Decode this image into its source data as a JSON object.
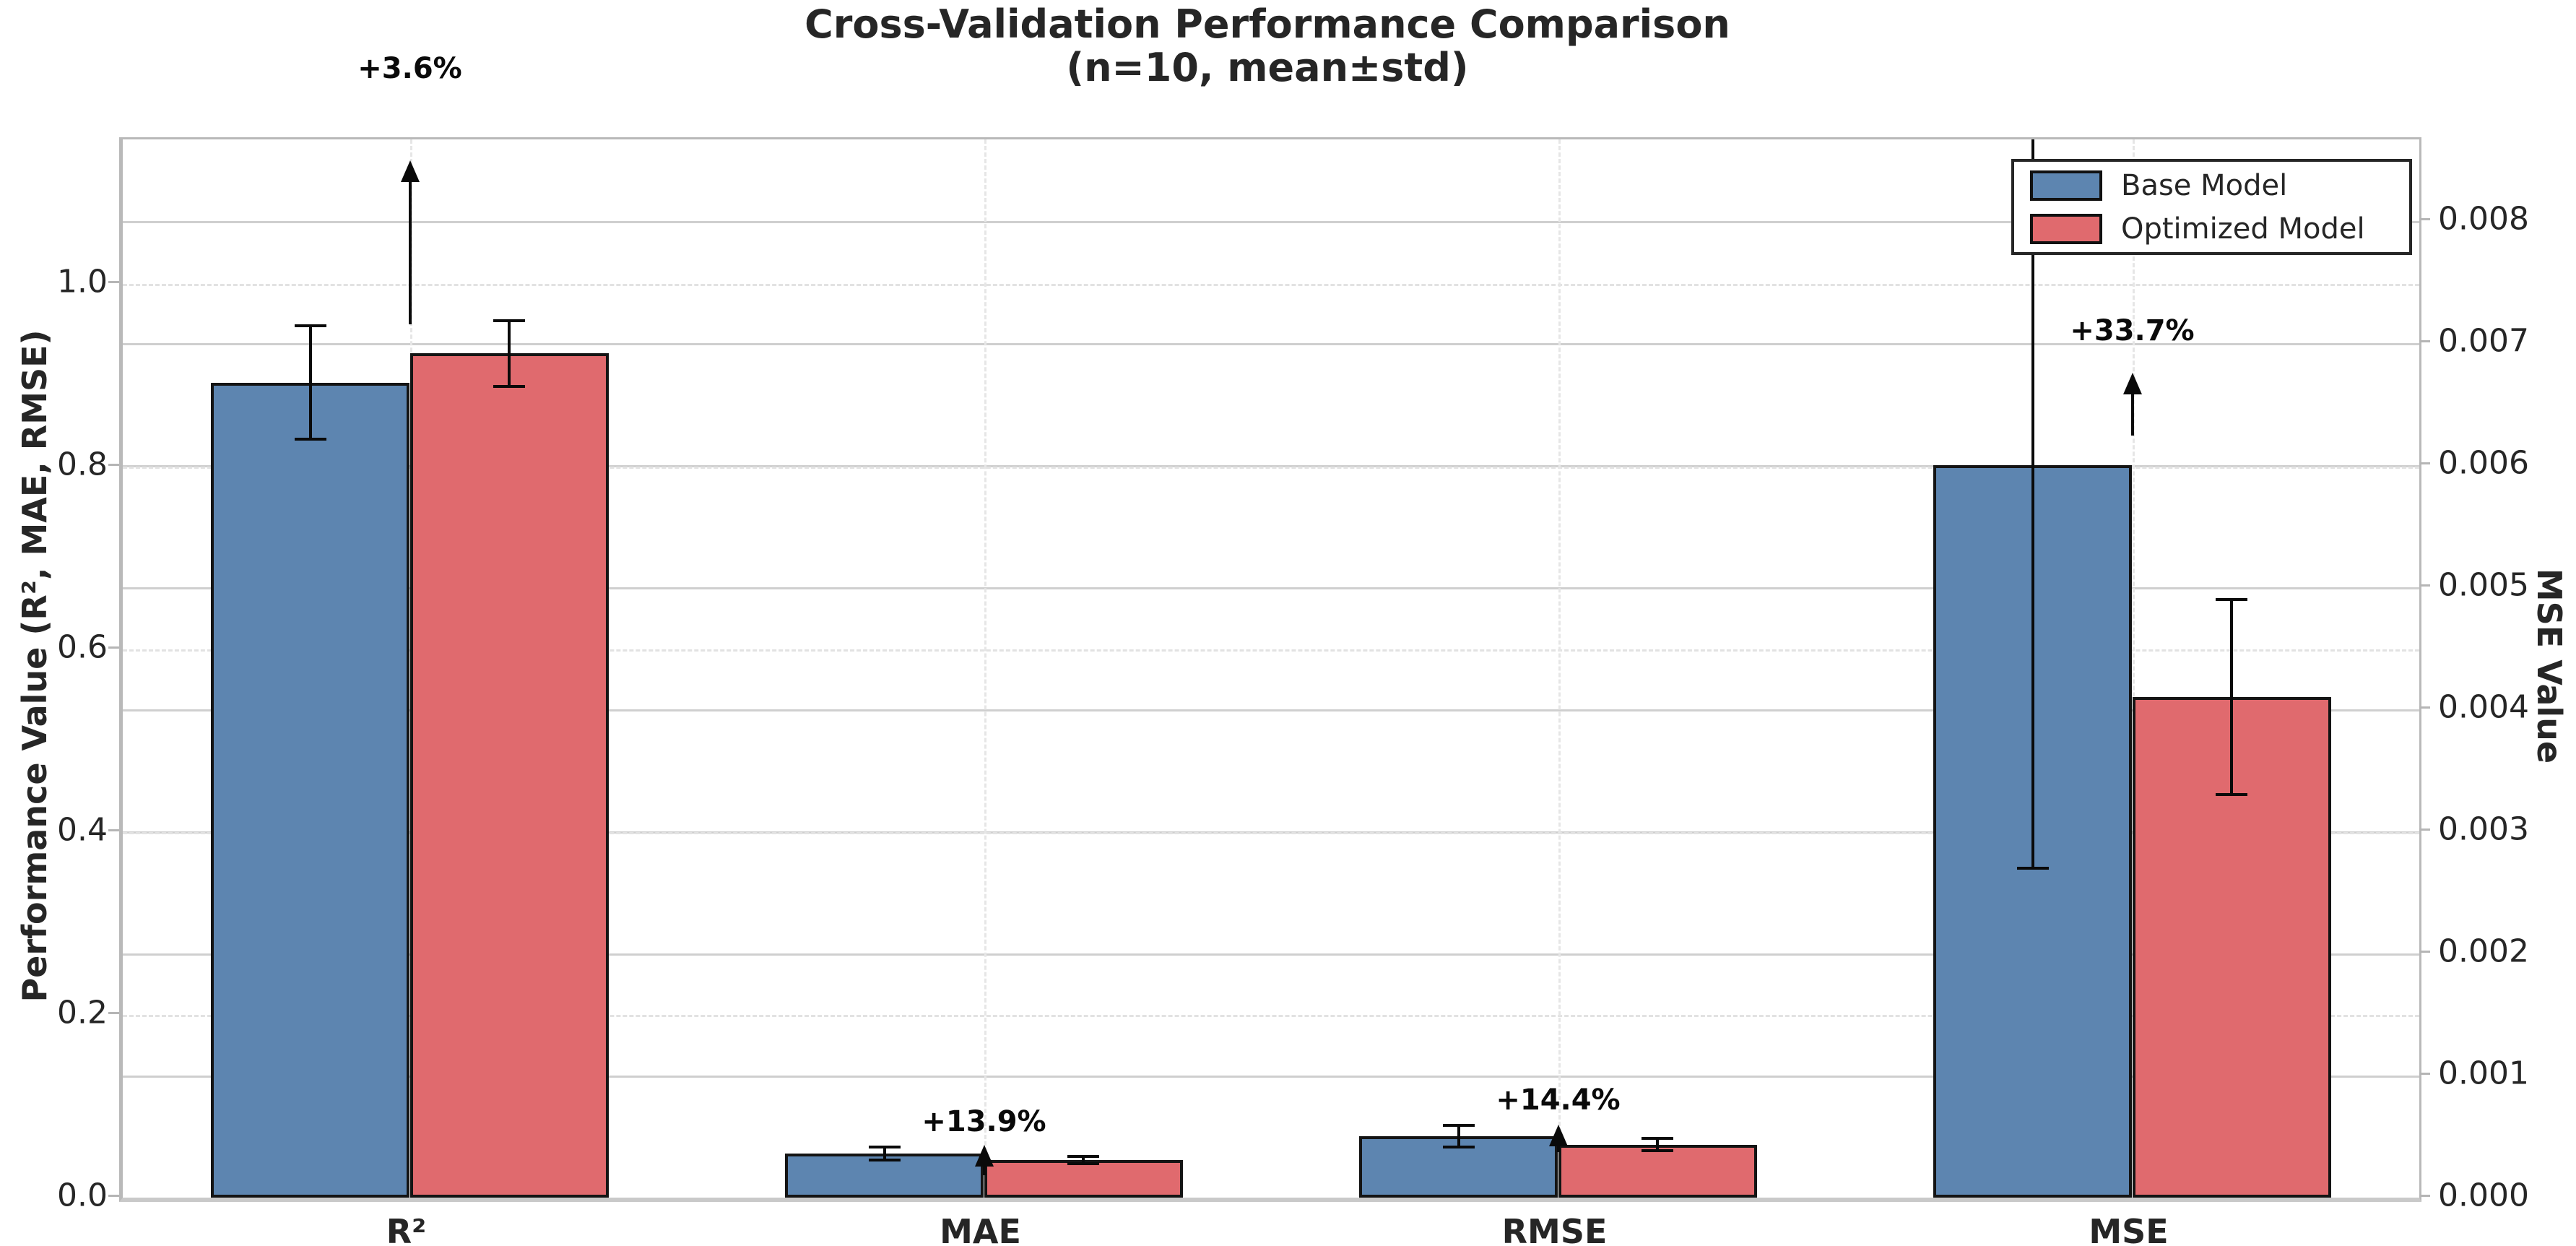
{
  "title": {
    "line1": "Cross-Validation Performance Comparison",
    "line2": "(n=10, mean±std)"
  },
  "left_axis": {
    "label": "Performance Value (R², MAE, RMSE)",
    "tick_labels": [
      "0.0",
      "0.2",
      "0.4",
      "0.6",
      "0.8",
      "1.0"
    ],
    "tick_values": [
      0,
      0.2,
      0.4,
      0.6,
      0.8,
      1.0
    ]
  },
  "right_axis": {
    "label": "MSE Value",
    "tick_labels": [
      "0.000",
      "0.001",
      "0.002",
      "0.003",
      "0.004",
      "0.005",
      "0.006",
      "0.007",
      "0.008"
    ],
    "tick_values": [
      0,
      0.001,
      0.002,
      0.003,
      0.004,
      0.005,
      0.006,
      0.007,
      0.008
    ]
  },
  "chart_data": {
    "type": "bar",
    "title": "Cross-Validation Performance Comparison (n=10, mean±std)",
    "categories": [
      "R²",
      "MAE",
      "RMSE",
      "MSE"
    ],
    "category_axis": [
      "left",
      "left",
      "left",
      "right"
    ],
    "series": [
      {
        "name": "Base Model",
        "color": "#5D85B0",
        "values": [
          0.892,
          0.048,
          0.067,
          0.006
        ],
        "errors": [
          0.062,
          0.007,
          0.012,
          0.0033
        ]
      },
      {
        "name": "Optimized Model",
        "color": "#E06A6E",
        "values": [
          0.924,
          0.041,
          0.058,
          0.0041
        ],
        "errors": [
          0.036,
          0.004,
          0.007,
          0.0008
        ]
      }
    ],
    "annotations": [
      {
        "category": "R²",
        "text": "+3.6%",
        "text_y": 1.236,
        "arrow_from": 0.956,
        "arrow_to": 1.135
      },
      {
        "category": "MAE",
        "text": "+13.9%",
        "text_y": 0.083,
        "arrow_from": 0.0245,
        "arrow_to": 0.058
      },
      {
        "category": "RMSE",
        "text": "+14.4%",
        "text_y": 0.107,
        "arrow_from": 0.05,
        "arrow_to": 0.08
      },
      {
        "category": "MSE",
        "text": "+33.7%",
        "text_y": 0.9485,
        "arrow_from": 0.834,
        "arrow_to": 0.903
      }
    ],
    "left_ylim": [
      0,
      1.1583
    ],
    "right_ylim": [
      0,
      0.00867
    ],
    "grid": true,
    "legend_position": "upper right",
    "bar_width_frac": 0.0865
  }
}
